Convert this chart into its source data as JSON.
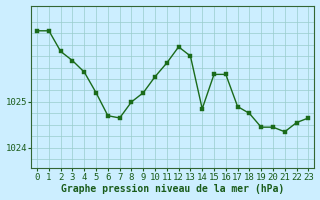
{
  "x": [
    0,
    1,
    2,
    3,
    4,
    5,
    6,
    7,
    8,
    9,
    10,
    11,
    12,
    13,
    14,
    15,
    16,
    17,
    18,
    19,
    20,
    21,
    22,
    23
  ],
  "y": [
    1026.55,
    1026.55,
    1026.1,
    1025.9,
    1025.65,
    1025.2,
    1024.7,
    1024.65,
    1025.0,
    1025.2,
    1025.55,
    1025.85,
    1026.2,
    1026.0,
    1024.85,
    1025.6,
    1025.6,
    1024.9,
    1024.75,
    1024.45,
    1024.45,
    1024.35,
    1024.55,
    1024.65
  ],
  "line_color": "#1a6b1a",
  "marker_color": "#1a6b1a",
  "bg_color": "#cceeff",
  "grid_color": "#99cccc",
  "axis_color": "#1a5c1a",
  "border_color": "#336633",
  "xlabel": "Graphe pression niveau de la mer (hPa)",
  "yticks": [
    1024,
    1025
  ],
  "ylim": [
    1023.55,
    1027.1
  ],
  "xlim": [
    -0.5,
    23.5
  ],
  "xticks": [
    0,
    1,
    2,
    3,
    4,
    5,
    6,
    7,
    8,
    9,
    10,
    11,
    12,
    13,
    14,
    15,
    16,
    17,
    18,
    19,
    20,
    21,
    22,
    23
  ],
  "xlabel_fontsize": 7.0,
  "tick_fontsize": 6.5,
  "line_width": 1.0,
  "marker_size": 2.8
}
